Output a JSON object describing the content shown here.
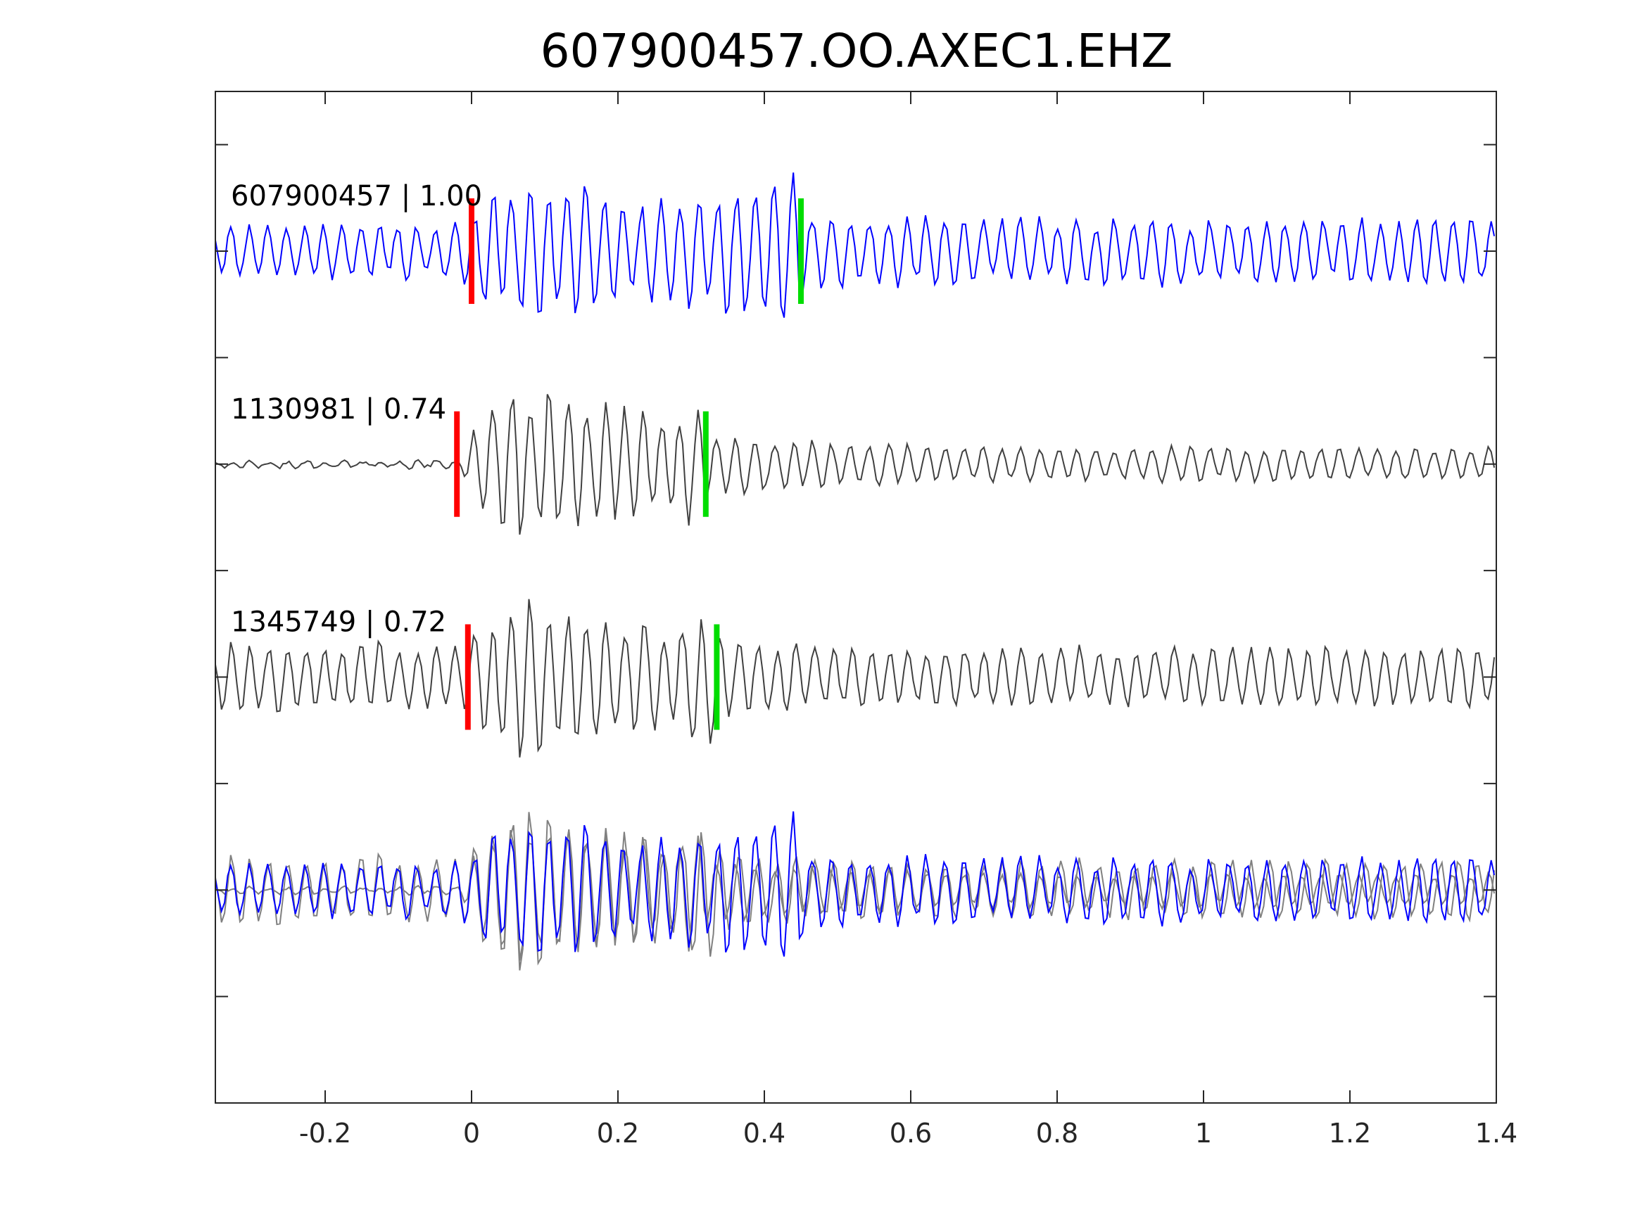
{
  "chart_data": {
    "type": "line",
    "title": "607900457.OO.AXEC1.EHZ",
    "xlabel": "",
    "ylabel": "",
    "xlim": [
      -0.35,
      1.4
    ],
    "xticks": [
      -0.2,
      0,
      0.2,
      0.4,
      0.6,
      0.8,
      1,
      1.2,
      1.4
    ],
    "xtick_labels": [
      "-0.2",
      "0",
      "0.2",
      "0.4",
      "0.6",
      "0.8",
      "1",
      "1.2",
      "1.4"
    ],
    "ytick_count": 9,
    "grid": false,
    "legend": "none",
    "traces": [
      {
        "label": "607900457 | 1.00",
        "color": "#0000ff",
        "p_pick": 0.0,
        "s_pick": 0.45,
        "onset": -0.02,
        "pre_amp": 0.35,
        "peak_amp": 0.95,
        "coda_amp": 0.42,
        "seed": 7
      },
      {
        "label": "1130981 | 0.74",
        "color": "#404040",
        "p_pick": -0.02,
        "s_pick": 0.32,
        "onset": -0.02,
        "pre_amp": 0.04,
        "peak_amp": 1.0,
        "coda_amp": 0.22,
        "seed": 19
      },
      {
        "label": "1345749 | 0.72",
        "color": "#404040",
        "p_pick": -0.005,
        "s_pick": 0.335,
        "onset": -0.01,
        "pre_amp": 0.45,
        "peak_amp": 1.0,
        "coda_amp": 0.38,
        "seed": 31
      }
    ],
    "overlay": {
      "colors": [
        "#808080",
        "#808080",
        "#0000ff"
      ]
    },
    "pick_colors": {
      "p": "#ff0000",
      "s": "#00dd00"
    }
  }
}
